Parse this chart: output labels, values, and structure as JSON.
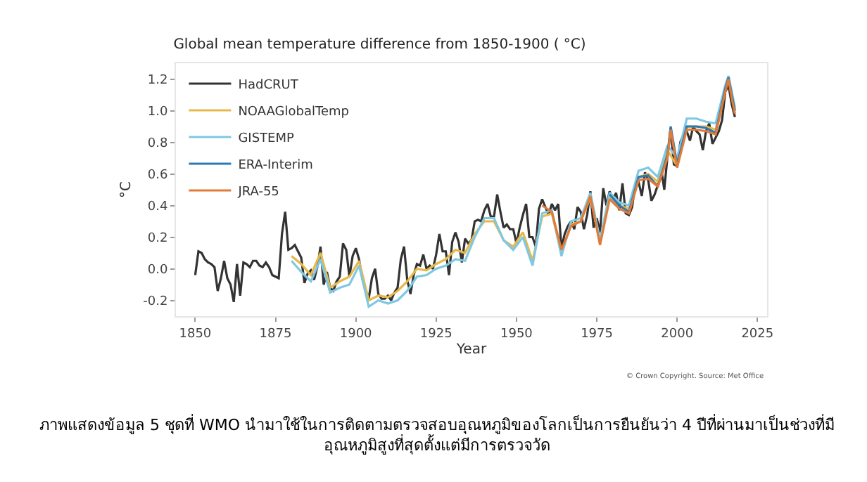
{
  "chart_data": {
    "type": "line",
    "title": "Global mean temperature difference from 1850-1900 ( °C)",
    "xlabel": "Year",
    "ylabel": "°C",
    "xlim": [
      1844,
      2028
    ],
    "xticks": [
      1850,
      1875,
      1900,
      1925,
      1950,
      1975,
      2000,
      2025
    ],
    "ylim": [
      -0.3,
      1.3
    ],
    "yticks": [
      {
        "value": -0.2,
        "label": "-0.2"
      },
      {
        "value": 0,
        "label": "0.0"
      },
      {
        "value": 0.2,
        "label": "0.2"
      },
      {
        "value": 0.4,
        "label": "0.4"
      },
      {
        "value": 0.6,
        "label": "0.6"
      },
      {
        "value": 0.8,
        "label": "0.8"
      },
      {
        "value": 1,
        "label": "1.0"
      },
      {
        "value": 1.2,
        "label": "1.2"
      }
    ],
    "grid": false,
    "legend": "top left",
    "marker": "none",
    "line_style": "solid",
    "annotations": [
      "© Crown Copyright. Source: Met Office",
      "ภาพแสดงข้อมูล 5 ชุดที่ WMO นำมาใช้ในการติดตามตรวจสอบอุณหภูมิของโลกเป็นการยืนยันว่า 4 ปีที่ผ่านมาเป็นช่วงที่มี\nอุณหภูมิสูงที่สุดตั้งแต่มีการตรวจวัด"
    ],
    "series": [
      {
        "name": "HadCRUT",
        "color": "#333333",
        "x": [
          1850,
          1851,
          1852,
          1853,
          1854,
          1855,
          1856,
          1857,
          1858,
          1859,
          1860,
          1861,
          1862,
          1863,
          1864,
          1865,
          1866,
          1867,
          1868,
          1869,
          1870,
          1871,
          1872,
          1873,
          1874,
          1875,
          1876,
          1877,
          1878,
          1879,
          1880,
          1881,
          1882,
          1883,
          1884,
          1885,
          1886,
          1887,
          1888,
          1889,
          1890,
          1891,
          1892,
          1893,
          1894,
          1895,
          1896,
          1897,
          1898,
          1899,
          1900,
          1901,
          1902,
          1903,
          1904,
          1905,
          1906,
          1907,
          1908,
          1909,
          1910,
          1911,
          1912,
          1913,
          1914,
          1915,
          1916,
          1917,
          1918,
          1919,
          1920,
          1921,
          1922,
          1923,
          1924,
          1925,
          1926,
          1927,
          1928,
          1929,
          1930,
          1931,
          1932,
          1933,
          1934,
          1935,
          1936,
          1937,
          1938,
          1939,
          1940,
          1941,
          1942,
          1943,
          1944,
          1945,
          1946,
          1947,
          1948,
          1949,
          1950,
          1951,
          1952,
          1953,
          1954,
          1955,
          1956,
          1957,
          1958,
          1959,
          1960,
          1961,
          1962,
          1963,
          1964,
          1965,
          1966,
          1967,
          1968,
          1969,
          1970,
          1971,
          1972,
          1973,
          1974,
          1975,
          1976,
          1977,
          1978,
          1979,
          1980,
          1981,
          1982,
          1983,
          1984,
          1985,
          1986,
          1987,
          1988,
          1989,
          1990,
          1991,
          1992,
          1993,
          1994,
          1995,
          1996,
          1997,
          1998,
          1999,
          2000,
          2001,
          2002,
          2003,
          2004,
          2005,
          2006,
          2007,
          2008,
          2009,
          2010,
          2011,
          2012,
          2013,
          2014,
          2015,
          2016,
          2017,
          2018
        ],
        "values": [
          -0.04,
          0.11,
          0.1,
          0.06,
          0.04,
          0.03,
          0.01,
          -0.14,
          -0.06,
          0.05,
          -0.06,
          -0.1,
          -0.21,
          0.03,
          -0.17,
          0.04,
          0.03,
          0.01,
          0.05,
          0.05,
          0.02,
          0.01,
          0.04,
          0.01,
          -0.04,
          -0.05,
          -0.06,
          0.22,
          0.36,
          0.12,
          0.13,
          0.15,
          0.11,
          0.07,
          -0.09,
          -0.03,
          -0.01,
          -0.07,
          0.01,
          0.14,
          -0.1,
          -0.02,
          -0.12,
          -0.14,
          -0.08,
          -0.05,
          0.16,
          0.12,
          -0.05,
          0.08,
          0.13,
          0.06,
          -0.06,
          -0.13,
          -0.19,
          -0.06,
          0.0,
          -0.16,
          -0.19,
          -0.19,
          -0.17,
          -0.2,
          -0.15,
          -0.12,
          0.06,
          0.14,
          -0.07,
          -0.16,
          -0.04,
          0.03,
          0.02,
          0.09,
          0.0,
          0.02,
          0.0,
          0.09,
          0.22,
          0.11,
          0.11,
          -0.04,
          0.17,
          0.23,
          0.17,
          0.04,
          0.19,
          0.16,
          0.18,
          0.3,
          0.31,
          0.3,
          0.37,
          0.41,
          0.33,
          0.33,
          0.47,
          0.36,
          0.26,
          0.28,
          0.25,
          0.25,
          0.16,
          0.26,
          0.34,
          0.41,
          0.2,
          0.2,
          0.14,
          0.38,
          0.44,
          0.39,
          0.34,
          0.41,
          0.37,
          0.41,
          0.13,
          0.22,
          0.27,
          0.3,
          0.25,
          0.39,
          0.36,
          0.25,
          0.34,
          0.49,
          0.26,
          0.32,
          0.23,
          0.51,
          0.4,
          0.49,
          0.44,
          0.48,
          0.37,
          0.54,
          0.35,
          0.34,
          0.39,
          0.54,
          0.55,
          0.46,
          0.61,
          0.56,
          0.43,
          0.47,
          0.53,
          0.64,
          0.5,
          0.71,
          0.89,
          0.66,
          0.65,
          0.8,
          0.85,
          0.87,
          0.81,
          0.9,
          0.87,
          0.85,
          0.75,
          0.87,
          0.92,
          0.79,
          0.83,
          0.87,
          0.94,
          1.12,
          1.16,
          1.04,
          0.96
        ]
      },
      {
        "name": "NOAAGlobalTemp",
        "color": "#e8b84a",
        "x": [
          1880,
          1883,
          1886,
          1889,
          1892,
          1895,
          1898,
          1901,
          1904,
          1907,
          1910,
          1913,
          1916,
          1919,
          1922,
          1925,
          1928,
          1931,
          1934,
          1937,
          1940,
          1943,
          1946,
          1949,
          1952,
          1955,
          1958,
          1961,
          1964,
          1967,
          1970,
          1973,
          1976,
          1979,
          1982,
          1985,
          1988,
          1991,
          1994,
          1997,
          2000,
          2003,
          2006,
          2009,
          2012,
          2015,
          2016,
          2017,
          2018
        ],
        "values": [
          0.08,
          0.03,
          -0.04,
          0.1,
          -0.12,
          -0.08,
          -0.05,
          0.05,
          -0.2,
          -0.17,
          -0.18,
          -0.14,
          -0.08,
          0.0,
          -0.01,
          0.03,
          0.06,
          0.12,
          0.1,
          0.22,
          0.3,
          0.3,
          0.18,
          0.14,
          0.23,
          0.05,
          0.33,
          0.35,
          0.1,
          0.28,
          0.3,
          0.45,
          0.18,
          0.45,
          0.4,
          0.38,
          0.58,
          0.6,
          0.55,
          0.75,
          0.65,
          0.9,
          0.9,
          0.9,
          0.88,
          1.15,
          1.2,
          1.1,
          1.0
        ]
      },
      {
        "name": "GISTEMP",
        "color": "#7ec8e3",
        "x": [
          1880,
          1883,
          1886,
          1889,
          1892,
          1895,
          1898,
          1901,
          1904,
          1907,
          1910,
          1913,
          1916,
          1919,
          1922,
          1925,
          1928,
          1931,
          1934,
          1937,
          1940,
          1943,
          1946,
          1949,
          1952,
          1955,
          1958,
          1961,
          1964,
          1967,
          1970,
          1973,
          1976,
          1979,
          1982,
          1985,
          1988,
          1991,
          1994,
          1997,
          2000,
          2003,
          2006,
          2009,
          2012,
          2015,
          2016,
          2017,
          2018
        ],
        "values": [
          0.05,
          -0.02,
          -0.08,
          0.06,
          -0.15,
          -0.12,
          -0.1,
          0.02,
          -0.24,
          -0.2,
          -0.22,
          -0.2,
          -0.14,
          -0.05,
          -0.04,
          0.0,
          0.02,
          0.06,
          0.05,
          0.2,
          0.32,
          0.32,
          0.18,
          0.12,
          0.2,
          0.02,
          0.35,
          0.37,
          0.08,
          0.3,
          0.32,
          0.48,
          0.18,
          0.48,
          0.42,
          0.4,
          0.62,
          0.64,
          0.58,
          0.78,
          0.7,
          0.95,
          0.95,
          0.93,
          0.92,
          1.16,
          1.22,
          1.12,
          1.02
        ]
      },
      {
        "name": "ERA-Interim",
        "color": "#2a7ab8",
        "x": [
          1979,
          1982,
          1985,
          1988,
          1991,
          1994,
          1997,
          1998,
          2000,
          2003,
          2006,
          2009,
          2012,
          2015,
          2016,
          2017,
          2018
        ],
        "values": [
          0.47,
          0.4,
          0.36,
          0.58,
          0.59,
          0.52,
          0.72,
          0.9,
          0.66,
          0.9,
          0.9,
          0.89,
          0.86,
          1.14,
          1.21,
          1.1,
          1.0
        ]
      },
      {
        "name": "JRA-55",
        "color": "#e07b39",
        "x": [
          1958,
          1961,
          1964,
          1967,
          1970,
          1973,
          1976,
          1979,
          1982,
          1985,
          1988,
          1991,
          1994,
          1997,
          1998,
          2000,
          2003,
          2006,
          2009,
          2012,
          2015,
          2016,
          2017,
          2018
        ],
        "values": [
          0.4,
          0.36,
          0.12,
          0.27,
          0.3,
          0.46,
          0.15,
          0.44,
          0.38,
          0.35,
          0.56,
          0.57,
          0.52,
          0.7,
          0.88,
          0.64,
          0.88,
          0.88,
          0.87,
          0.85,
          1.12,
          1.2,
          1.08,
          0.98
        ]
      }
    ]
  }
}
